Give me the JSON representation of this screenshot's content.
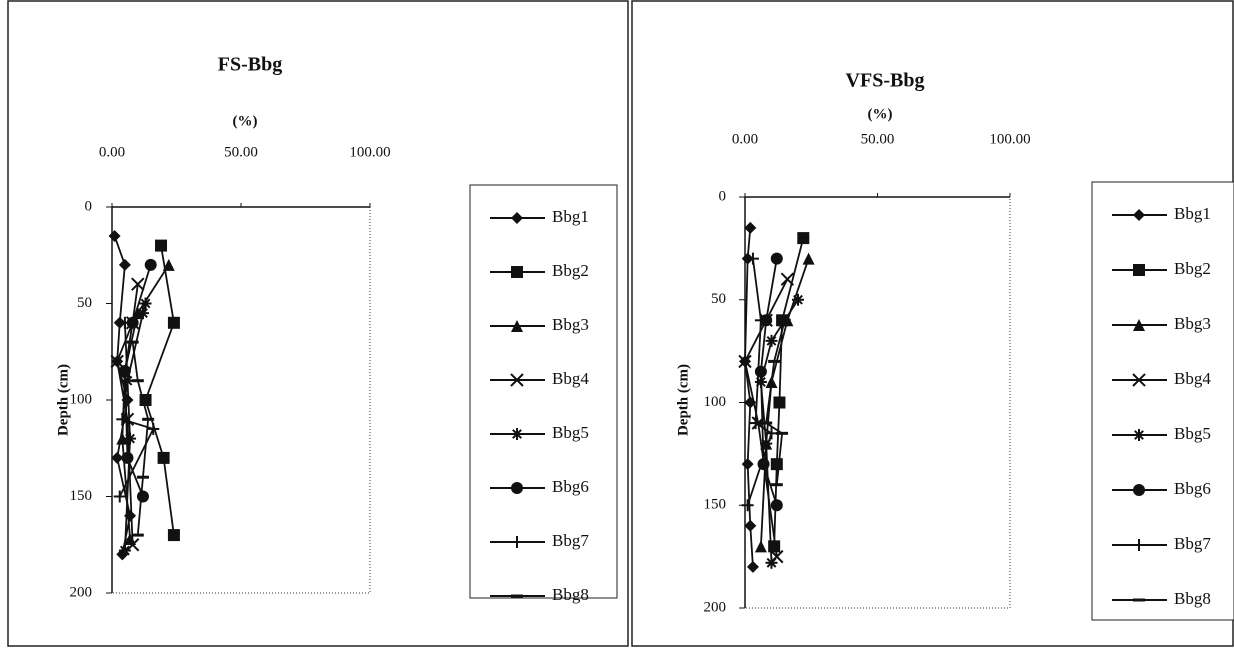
{
  "chart_data": [
    {
      "type": "scatter",
      "title": "FS-Bbg",
      "x_label": "(%)",
      "y_label": "Depth (cm)",
      "xlim": [
        0,
        100
      ],
      "xticks": [
        {
          "value": 0,
          "label": "0.00"
        },
        {
          "value": 50,
          "label": "50.00"
        },
        {
          "value": 100,
          "label": "100.00"
        }
      ],
      "ylim": [
        0,
        200
      ],
      "yticks": [
        0,
        50,
        100,
        150,
        200
      ],
      "y_inverted": true,
      "x_axis_top": true,
      "legend": "right",
      "series": [
        {
          "name": "Bbg1",
          "color": "#111111",
          "marker": "diamond",
          "x": [
            1,
            5,
            3,
            2,
            6,
            2,
            7,
            4
          ],
          "values": [
            15,
            30,
            60,
            80,
            100,
            130,
            160,
            180
          ]
        },
        {
          "name": "Bbg2",
          "color": "#111111",
          "marker": "square",
          "x": [
            19,
            24,
            13,
            20,
            24
          ],
          "values": [
            20,
            60,
            100,
            130,
            170
          ]
        },
        {
          "name": "Bbg3",
          "color": "#111111",
          "marker": "triangle",
          "x": [
            22,
            10,
            5,
            4,
            7
          ],
          "values": [
            30,
            55,
            85,
            120,
            172
          ]
        },
        {
          "name": "Bbg4",
          "color": "#111111",
          "marker": "x",
          "x": [
            10,
            8,
            2,
            6,
            8
          ],
          "values": [
            40,
            60,
            80,
            110,
            175
          ]
        },
        {
          "name": "Bbg5",
          "color": "#111111",
          "marker": "star",
          "x": [
            13,
            12,
            6,
            7,
            5
          ],
          "values": [
            50,
            55,
            90,
            120,
            178
          ]
        },
        {
          "name": "Bbg6",
          "color": "#111111",
          "marker": "circle",
          "x": [
            15,
            8,
            5,
            6,
            12
          ],
          "values": [
            30,
            60,
            85,
            130,
            150
          ]
        },
        {
          "name": "Bbg7",
          "color": "#111111",
          "marker": "plus",
          "x": [
            5,
            6,
            4,
            16,
            3
          ],
          "values": [
            60,
            90,
            110,
            115,
            150
          ]
        },
        {
          "name": "Bbg8",
          "color": "#111111",
          "marker": "dash",
          "x": [
            8,
            10,
            14,
            12,
            10
          ],
          "values": [
            70,
            90,
            110,
            140,
            170
          ]
        }
      ]
    },
    {
      "type": "scatter",
      "title": "VFS-Bbg",
      "x_label": "(%)",
      "y_label": "Depth (cm)",
      "xlim": [
        0,
        100
      ],
      "xticks": [
        {
          "value": 0,
          "label": "0.00"
        },
        {
          "value": 50,
          "label": "50.00"
        },
        {
          "value": 100,
          "label": "100.00"
        }
      ],
      "ylim": [
        0,
        200
      ],
      "yticks": [
        0,
        50,
        100,
        150,
        200
      ],
      "y_inverted": true,
      "x_axis_top": true,
      "legend": "right",
      "series": [
        {
          "name": "Bbg1",
          "color": "#111111",
          "marker": "diamond",
          "x": [
            2,
            1,
            0,
            2,
            1,
            2,
            3
          ],
          "values": [
            15,
            30,
            80,
            100,
            130,
            160,
            180
          ]
        },
        {
          "name": "Bbg2",
          "color": "#111111",
          "marker": "square",
          "x": [
            22,
            14,
            13,
            12,
            11
          ],
          "values": [
            20,
            60,
            100,
            130,
            170
          ]
        },
        {
          "name": "Bbg3",
          "color": "#111111",
          "marker": "triangle",
          "x": [
            24,
            16,
            10,
            8,
            6
          ],
          "values": [
            30,
            60,
            90,
            120,
            170
          ]
        },
        {
          "name": "Bbg4",
          "color": "#111111",
          "marker": "x",
          "x": [
            16,
            8,
            0,
            5,
            12
          ],
          "values": [
            40,
            60,
            80,
            110,
            175
          ]
        },
        {
          "name": "Bbg5",
          "color": "#111111",
          "marker": "star",
          "x": [
            20,
            10,
            6,
            8,
            10
          ],
          "values": [
            50,
            70,
            90,
            120,
            178
          ]
        },
        {
          "name": "Bbg6",
          "color": "#111111",
          "marker": "circle",
          "x": [
            12,
            8,
            6,
            7,
            12
          ],
          "values": [
            30,
            60,
            85,
            130,
            150
          ]
        },
        {
          "name": "Bbg7",
          "color": "#111111",
          "marker": "plus",
          "x": [
            3,
            6,
            4,
            10,
            1
          ],
          "values": [
            30,
            60,
            110,
            115,
            150
          ]
        },
        {
          "name": "Bbg8",
          "color": "#111111",
          "marker": "dash",
          "x": [
            15,
            11,
            8,
            14,
            12
          ],
          "values": [
            60,
            80,
            110,
            115,
            140
          ]
        }
      ]
    }
  ]
}
